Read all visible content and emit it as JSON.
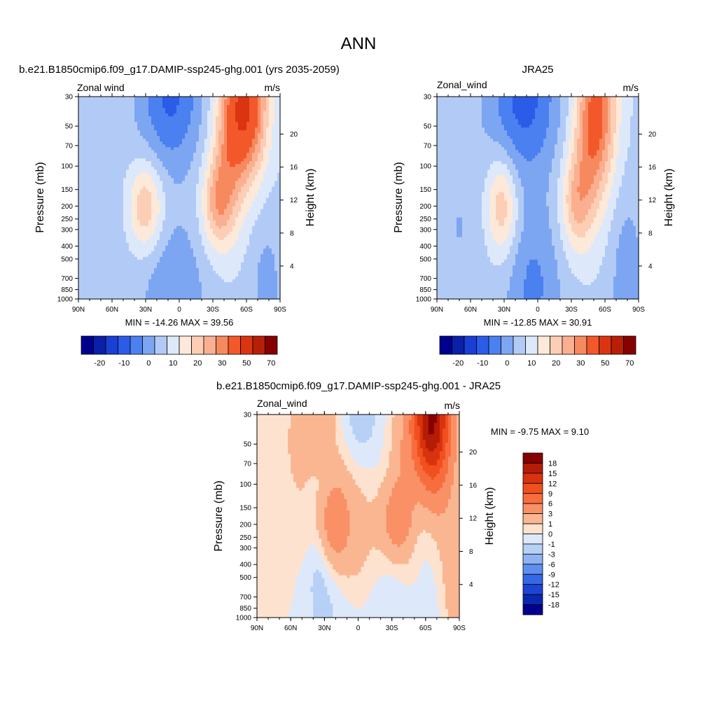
{
  "figure_title": "ANN",
  "panels": [
    {
      "title": "b.e21.B1850cmip6.f09_g17.DAMIP-ssp245-ghg.001 (yrs 2035-2059)",
      "left_label": "Zonal wind",
      "right_label": "m/s",
      "ylabel": "Pressure (mb)",
      "y2label": "Height (km)",
      "stats": "MIN = -14.26  MAX =  39.56"
    },
    {
      "title": "JRA25",
      "left_label": "Zonal_wind",
      "right_label": "m/s",
      "ylabel": "Pressure (mb)",
      "y2label": "Height (km)",
      "stats": "MIN = -12.85  MAX =  30.91"
    },
    {
      "title": "b.e21.B1850cmip6.f09_g17.DAMIP-ssp245-ghg.001 - JRA25",
      "left_label": "Zonal_wind",
      "right_label": "m/s",
      "ylabel": "Pressure (mb)",
      "y2label": "Height (km)",
      "stats": "MIN =  -9.75  MAX =   9.10"
    }
  ],
  "chart_data": [
    {
      "type": "heatmap",
      "subtype": "filled-contour",
      "title": "b.e21.B1850cmip6.f09_g17.DAMIP-ssp245-ghg.001 (yrs 2035-2059)",
      "variable": "Zonal wind",
      "units": "m/s",
      "xlabel": "",
      "ylabel": "Pressure (mb)",
      "y2label": "Height (km)",
      "x_ticks": [
        "90N",
        "60N",
        "30N",
        "0",
        "30S",
        "60S",
        "90S"
      ],
      "y_ticks": [
        "30",
        "50",
        "70",
        "100",
        "150",
        "200",
        "250",
        "300",
        "400",
        "500",
        "700",
        "850",
        "1000"
      ],
      "y2_ticks": [
        "4",
        "8",
        "12",
        "16",
        "20"
      ],
      "ylim": [
        1000,
        30
      ],
      "y_scale": "log",
      "min": -14.26,
      "max": 39.56,
      "colorbar_labels": [
        "-20",
        "-10",
        "0",
        "10",
        "20",
        "30",
        "50",
        "70"
      ],
      "features": [
        {
          "lat": -62,
          "p": 30,
          "value": 40
        },
        {
          "lat": -33,
          "p": 200,
          "value": 25
        },
        {
          "lat": 32,
          "p": 200,
          "value": 19
        },
        {
          "lat": 10,
          "p": 30,
          "value": -13
        },
        {
          "lat": 10,
          "p": 1000,
          "value": -8
        }
      ]
    },
    {
      "type": "heatmap",
      "subtype": "filled-contour",
      "title": "JRA25",
      "variable": "Zonal_wind",
      "units": "m/s",
      "xlabel": "",
      "ylabel": "Pressure (mb)",
      "y2label": "Height (km)",
      "x_ticks": [
        "90N",
        "60N",
        "30N",
        "0",
        "30S",
        "60S",
        "90S"
      ],
      "y_ticks": [
        "30",
        "50",
        "70",
        "100",
        "150",
        "200",
        "250",
        "300",
        "400",
        "500",
        "700",
        "850",
        "1000"
      ],
      "y2_ticks": [
        "4",
        "8",
        "12",
        "16",
        "20"
      ],
      "ylim": [
        1000,
        30
      ],
      "y_scale": "log",
      "min": -12.85,
      "max": 30.91,
      "colorbar_labels": [
        "-20",
        "-10",
        "0",
        "10",
        "20",
        "30",
        "50",
        "70"
      ],
      "features": [
        {
          "lat": -55,
          "p": 30,
          "value": 30
        },
        {
          "lat": -32,
          "p": 200,
          "value": 22
        },
        {
          "lat": 32,
          "p": 200,
          "value": 20
        },
        {
          "lat": 15,
          "p": 30,
          "value": -12
        }
      ]
    },
    {
      "type": "heatmap",
      "subtype": "filled-contour",
      "title": "b.e21.B1850cmip6.f09_g17.DAMIP-ssp245-ghg.001 - JRA25",
      "variable": "Zonal_wind",
      "units": "m/s",
      "xlabel": "",
      "ylabel": "Pressure (mb)",
      "y2label": "Height (km)",
      "x_ticks": [
        "90N",
        "60N",
        "30N",
        "0",
        "30S",
        "60S",
        "90S"
      ],
      "y_ticks": [
        "30",
        "50",
        "70",
        "100",
        "150",
        "200",
        "250",
        "300",
        "400",
        "500",
        "700",
        "850",
        "1000"
      ],
      "y2_ticks": [
        "4",
        "8",
        "12",
        "16",
        "20"
      ],
      "ylim": [
        1000,
        30
      ],
      "y_scale": "log",
      "min": -9.75,
      "max": 9.1,
      "colorbar_labels": [
        "18",
        "15",
        "12",
        "9",
        "6",
        "3",
        "1",
        "0",
        "-1",
        "-3",
        "-6",
        "-9",
        "-12",
        "-15",
        "-18"
      ],
      "features": [
        {
          "lat": -55,
          "p": 40,
          "value": 9
        },
        {
          "lat": 10,
          "p": 60,
          "value": -6
        },
        {
          "lat": 65,
          "p": 40,
          "value": 5
        },
        {
          "lat": 70,
          "p": 300,
          "value": -2
        }
      ]
    }
  ],
  "colors": {
    "abs_scale": [
      "#00008f",
      "#0a1faa",
      "#1a3fd4",
      "#2a5ce8",
      "#4a80ef",
      "#7da6f2",
      "#b2cbf6",
      "#dde9fb",
      "#fde9d9",
      "#fcceb5",
      "#fab090",
      "#f7895f",
      "#f3582b",
      "#db3410",
      "#b91e07",
      "#870000"
    ],
    "diff_scale": [
      "#870000",
      "#b51c06",
      "#d9320e",
      "#f1501e",
      "#f76d3e",
      "#f99066",
      "#fab691",
      "#fde2cf",
      "#dde9fb",
      "#b6d0f6",
      "#8fb3f2",
      "#5f8fee",
      "#3468e6",
      "#1c45d6",
      "#0a27b0",
      "#00008f"
    ]
  }
}
